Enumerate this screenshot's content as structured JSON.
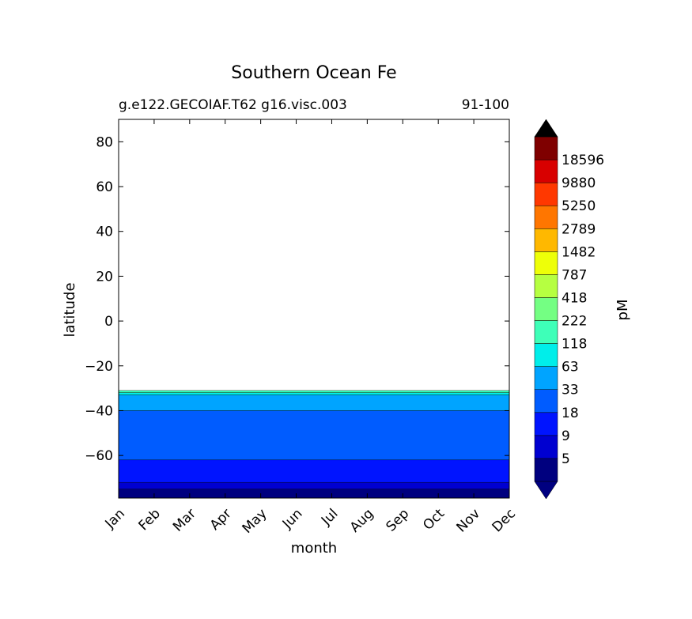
{
  "chart_data": {
    "type": "heatmap",
    "title": "Southern Ocean Fe",
    "subtitle_left": "g.e122.GECOIAF.T62 g16.visc.003",
    "subtitle_right": "91-100",
    "xlabel": "month",
    "ylabel": "latitude",
    "x_categories": [
      "Jan",
      "Feb",
      "Mar",
      "Apr",
      "May",
      "Jun",
      "Jul",
      "Aug",
      "Sep",
      "Oct",
      "Nov",
      "Dec"
    ],
    "xlim": [
      0,
      11
    ],
    "ylim": [
      -79,
      90
    ],
    "y_ticks": [
      {
        "value": 80,
        "label": "80"
      },
      {
        "value": 60,
        "label": "60"
      },
      {
        "value": 40,
        "label": "40"
      },
      {
        "value": 20,
        "label": "20"
      },
      {
        "value": 0,
        "label": "0"
      },
      {
        "value": -20,
        "label": "−20"
      },
      {
        "value": -40,
        "label": "−40"
      },
      {
        "value": -60,
        "label": "−60"
      }
    ],
    "colorbar": {
      "label": "pM",
      "levels": [
        5,
        9,
        18,
        33,
        63,
        118,
        222,
        418,
        787,
        1482,
        2789,
        5250,
        9880,
        18596
      ],
      "level_labels": [
        "5",
        "9",
        "18",
        "33",
        "63",
        "118",
        "222",
        "418",
        "787",
        "1482",
        "2789",
        "5250",
        "9880",
        "18596"
      ],
      "colors": [
        "#00007f",
        "#0000d0",
        "#0014ff",
        "#005cff",
        "#00a4ff",
        "#00eeea",
        "#3effb8",
        "#74ff83",
        "#b6ff41",
        "#eeff08",
        "#ffb800",
        "#ff7600",
        "#ff3800",
        "#d80000",
        "#7f0000"
      ],
      "extend": "both",
      "under_color": "#000080",
      "over_color": "#000000"
    },
    "field_bands": [
      {
        "level": 0,
        "lat": [
          -79,
          -75
        ]
      },
      {
        "level": 1,
        "lat": [
          -75,
          -72
        ]
      },
      {
        "level": 2,
        "lat": [
          -72,
          -62
        ]
      },
      {
        "level": 3,
        "lat": [
          -62,
          -40
        ]
      },
      {
        "level": 4,
        "lat": [
          -40,
          -33
        ]
      },
      {
        "level": 5,
        "lat": [
          -33,
          -32
        ]
      },
      {
        "level": 6,
        "lat": [
          -32,
          -31
        ]
      }
    ]
  }
}
